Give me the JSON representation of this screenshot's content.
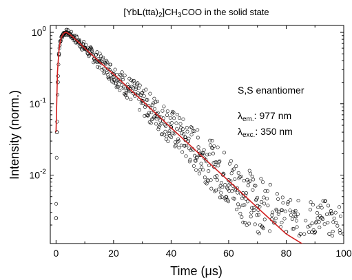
{
  "chart_data": {
    "type": "scatter",
    "title": {
      "prefix": "[Yb",
      "bold": "L",
      "mid1": "(tta)",
      "sub1": "2",
      "mid2": "]CH",
      "sub2": "3",
      "suffix": "COO in the solid state"
    },
    "xlabel": {
      "prefix": "Time (",
      "greek": "μ",
      "suffix": "s)"
    },
    "ylabel": "Intensity (norm.)",
    "xlim": [
      -2,
      100
    ],
    "ylim": [
      0.0011,
      1.25
    ],
    "yscale": "log",
    "x_ticks": [
      0,
      20,
      40,
      60,
      80,
      100
    ],
    "y_ticks": [
      {
        "base": "10",
        "exp": "0",
        "value": 1
      },
      {
        "base": "10",
        "exp": "-1",
        "value": 0.1
      },
      {
        "base": "10",
        "exp": "-2",
        "value": 0.01
      }
    ],
    "annotations": {
      "enantiomer": "S,S enantiomer",
      "em_symbol": "λ",
      "em_sub": "em.",
      "em_value": ": 977 nm",
      "exc_symbol": "λ",
      "exc_sub": "exc.",
      "exc_value": ": 350 nm"
    },
    "series": [
      {
        "kind": "measured",
        "marker": "open-circle",
        "color": "#000000",
        "x": [
          0,
          0.3,
          0.6,
          1,
          1.5,
          2,
          2.5,
          3,
          3.5,
          4,
          5,
          6,
          8,
          10,
          12,
          15,
          18,
          20,
          25,
          30,
          35,
          40,
          45,
          50,
          55,
          60,
          65,
          70,
          75,
          80,
          85,
          90,
          95,
          100
        ],
        "y": [
          0.0025,
          0.04,
          0.2,
          0.5,
          0.75,
          0.88,
          0.95,
          0.98,
          1.0,
          0.99,
          0.93,
          0.86,
          0.73,
          0.61,
          0.51,
          0.4,
          0.31,
          0.26,
          0.17,
          0.11,
          0.072,
          0.047,
          0.031,
          0.02,
          0.013,
          0.0085,
          0.0056,
          0.0037,
          0.0024,
          0.0016,
          0.0015,
          0.0016,
          0.0015,
          0.0015
        ]
      },
      {
        "kind": "fit",
        "color": "#d21f1f",
        "x": [
          0,
          0.5,
          1,
          1.5,
          2,
          2.5,
          3,
          3.5,
          4,
          5,
          6,
          8,
          10,
          15,
          20,
          30,
          40,
          50,
          60,
          70,
          80,
          88
        ],
        "y": [
          0.04,
          0.28,
          0.55,
          0.76,
          0.88,
          0.95,
          0.99,
          1.0,
          0.98,
          0.92,
          0.85,
          0.72,
          0.6,
          0.39,
          0.26,
          0.11,
          0.046,
          0.0195,
          0.0083,
          0.0035,
          0.0015,
          0.00095
        ]
      }
    ]
  }
}
